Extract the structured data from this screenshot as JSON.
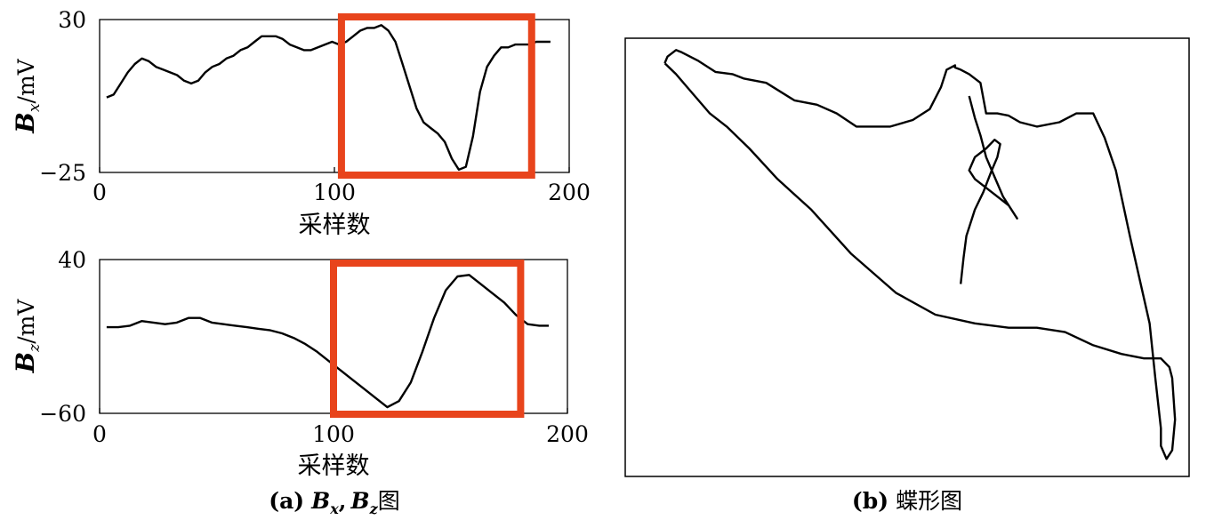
{
  "chart_data": [
    {
      "type": "line",
      "ylabel_var": "B",
      "ylabel_sub": "x",
      "ylabel_unit": "/mV",
      "xlabel": "采样数",
      "xlim": [
        0,
        200
      ],
      "ylim": [
        -25,
        30
      ],
      "xticks": [
        "0",
        "100",
        "200"
      ],
      "yticks": [
        "30",
        "−25"
      ],
      "highlight_x": [
        103,
        184
      ],
      "series": [
        {
          "x": [
            3,
            6,
            9,
            12,
            15,
            18,
            21,
            24,
            27,
            30,
            33,
            36,
            39,
            42,
            45,
            48,
            51,
            54,
            57,
            60,
            63,
            66,
            69,
            72,
            75,
            78,
            81,
            84,
            87,
            90,
            93,
            96,
            99,
            102,
            105,
            108,
            111,
            114,
            117,
            120,
            123,
            126,
            129,
            132,
            135,
            138,
            141,
            144,
            147,
            150,
            153,
            156,
            159,
            162,
            165,
            168,
            171,
            174,
            177,
            180,
            183,
            186,
            189,
            192
          ],
          "y": [
            2,
            3,
            7,
            11,
            14,
            16,
            15,
            13,
            12,
            11,
            10,
            8,
            7,
            8,
            11,
            13,
            14,
            16,
            17,
            19,
            20,
            22,
            24,
            24,
            24,
            23,
            21,
            20,
            19,
            19,
            20,
            21,
            22,
            21,
            22,
            24,
            26,
            27,
            27,
            28,
            26,
            22,
            14,
            6,
            -2,
            -7,
            -9,
            -11,
            -14,
            -20,
            -24,
            -23,
            -12,
            4,
            13,
            17,
            20,
            20,
            21,
            21,
            21,
            22,
            22,
            22
          ]
        }
      ]
    },
    {
      "type": "line",
      "ylabel_var": "B",
      "ylabel_sub": "z",
      "ylabel_unit": "/mV",
      "xlabel": "采样数",
      "xlim": [
        0,
        200
      ],
      "ylim": [
        -60,
        40
      ],
      "xticks": [
        "0",
        "100",
        "200"
      ],
      "yticks": [
        "40",
        "−60"
      ],
      "highlight_x": [
        100,
        180
      ],
      "series": [
        {
          "x": [
            3,
            8,
            13,
            18,
            23,
            28,
            33,
            38,
            43,
            48,
            53,
            58,
            63,
            68,
            73,
            78,
            83,
            88,
            93,
            98,
            103,
            108,
            113,
            118,
            123,
            128,
            133,
            138,
            143,
            148,
            153,
            158,
            163,
            168,
            173,
            178,
            183,
            188,
            192
          ],
          "y": [
            -4,
            -4,
            -3,
            0,
            -1,
            -2,
            -1,
            2,
            2,
            -1,
            -2,
            -3,
            -4,
            -5,
            -6,
            -8,
            -11,
            -15,
            -20,
            -26,
            -32,
            -38,
            -44,
            -50,
            -56,
            -52,
            -40,
            -20,
            2,
            20,
            29,
            30,
            24,
            18,
            12,
            4,
            -2,
            -3,
            -3
          ]
        }
      ]
    },
    {
      "type": "line",
      "xlabel": "",
      "ylabel": "",
      "grid": false,
      "series": [
        {
          "x": [
            -0.86,
            -0.85,
            -0.82,
            -0.8,
            -0.74,
            -0.68,
            -0.62,
            -0.58,
            -0.5,
            -0.4,
            -0.32,
            -0.25,
            -0.18,
            -0.06,
            0.02,
            0.08,
            0.12,
            0.14,
            0.17,
            0.17,
            0.19,
            0.22,
            0.26,
            0.28,
            0.32,
            0.36,
            0.4,
            0.46,
            0.54,
            0.6,
            0.66,
            0.7,
            0.74,
            0.79,
            0.86,
            0.88,
            0.9,
            0.9,
            0.92,
            0.94,
            0.95,
            0.94,
            0.93,
            0.9,
            0.84,
            0.76,
            0.66,
            0.56,
            0.46,
            0.36,
            0.24,
            0.1,
            -0.04,
            -0.2,
            -0.34,
            -0.46,
            -0.56,
            -0.64,
            -0.7,
            -0.74,
            -0.78,
            -0.82,
            -0.86
          ],
          "y": [
            0.89,
            0.92,
            0.95,
            0.94,
            0.9,
            0.85,
            0.84,
            0.82,
            0.8,
            0.72,
            0.7,
            0.66,
            0.6,
            0.6,
            0.63,
            0.68,
            0.78,
            0.86,
            0.88,
            0.87,
            0.86,
            0.84,
            0.8,
            0.66,
            0.66,
            0.65,
            0.62,
            0.6,
            0.62,
            0.66,
            0.66,
            0.55,
            0.4,
            0.1,
            -0.3,
            -0.55,
            -0.78,
            -0.86,
            -0.92,
            -0.88,
            -0.74,
            -0.55,
            -0.5,
            -0.46,
            -0.46,
            -0.44,
            -0.4,
            -0.34,
            -0.32,
            -0.32,
            -0.3,
            -0.26,
            -0.16,
            0.02,
            0.22,
            0.36,
            0.5,
            0.6,
            0.66,
            0.72,
            0.78,
            0.84,
            0.89
          ]
        },
        {
          "x": [
            0.22,
            0.24,
            0.26,
            0.28,
            0.3,
            0.34,
            0.39,
            0.36,
            0.3,
            0.24,
            0.22,
            0.24,
            0.28,
            0.31,
            0.33,
            0.32,
            0.3,
            0.27,
            0.24,
            0.21,
            0.2,
            0.19
          ],
          "y": [
            0.74,
            0.64,
            0.56,
            0.46,
            0.4,
            0.28,
            0.18,
            0.24,
            0.3,
            0.36,
            0.4,
            0.46,
            0.5,
            0.54,
            0.52,
            0.46,
            0.4,
            0.3,
            0.22,
            0.1,
            0.0,
            -0.12
          ]
        }
      ]
    }
  ],
  "captions": {
    "a_label": "(a)",
    "a_var1": "B",
    "a_sub1": "x",
    "a_sep": ",",
    "a_var2": "B",
    "a_sub2": "z",
    "a_suffix": "图",
    "b_label": "(b)",
    "b_text": "蝶形图"
  },
  "colors": {
    "highlight": "#e8441c",
    "line": "#000000"
  }
}
